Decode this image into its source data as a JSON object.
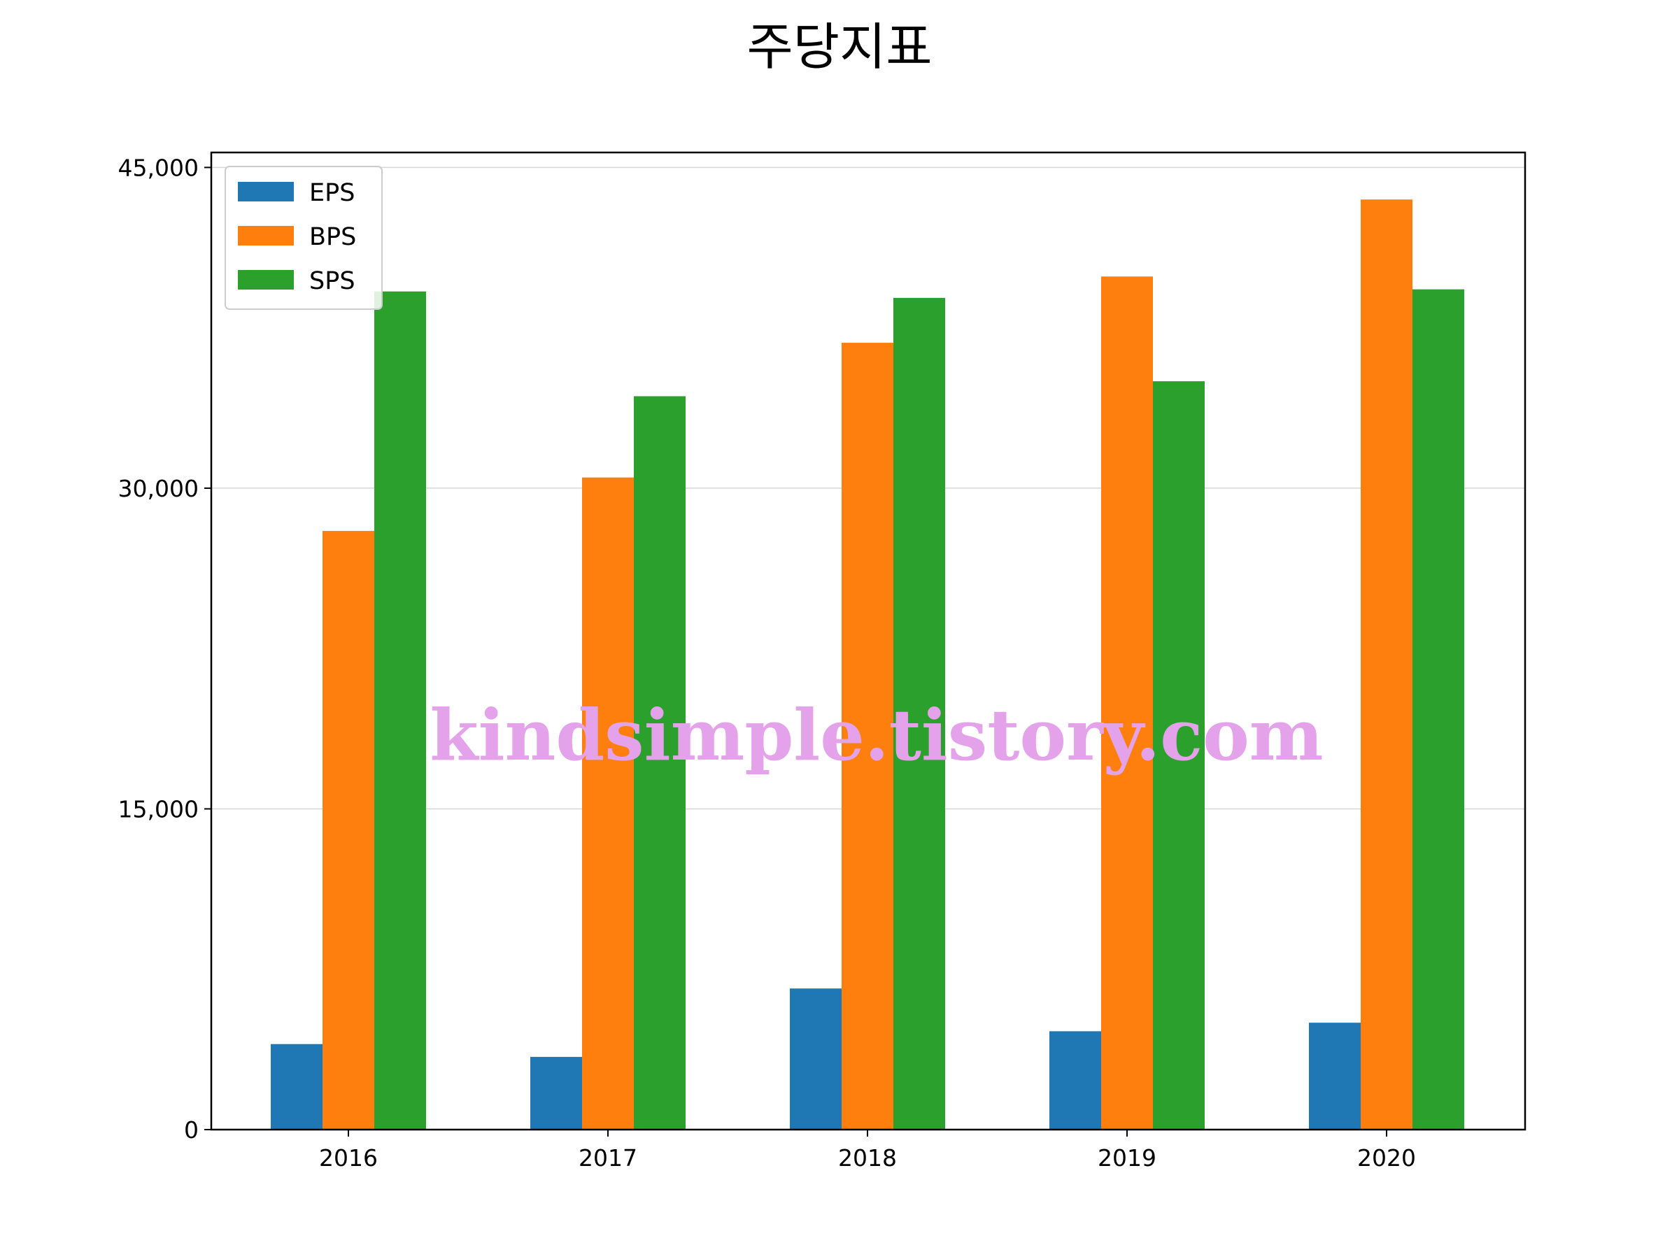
{
  "chart_data": {
    "type": "bar",
    "title": "주당지표",
    "xlabel": "",
    "ylabel": "",
    "categories": [
      "2016",
      "2017",
      "2018",
      "2019",
      "2020"
    ],
    "series": [
      {
        "name": "EPS",
        "color": "#1f77b4",
        "values": [
          4000,
          3400,
          6600,
          4600,
          5000
        ]
      },
      {
        "name": "BPS",
        "color": "#ff7f0e",
        "values": [
          28000,
          30500,
          36800,
          39900,
          43500
        ]
      },
      {
        "name": "SPS",
        "color": "#2ca02c",
        "values": [
          39200,
          34300,
          38900,
          35000,
          39300
        ]
      }
    ],
    "ylim": [
      0,
      45700
    ],
    "yticks": [
      0,
      15000,
      30000,
      45000
    ],
    "ytick_labels": [
      "0",
      "15,000",
      "30,000",
      "45,000"
    ],
    "grid": "horizontal",
    "legend_position": "top-left",
    "watermark": "kindsimple.tistory.com",
    "watermark_color": "#e4a2ea"
  }
}
